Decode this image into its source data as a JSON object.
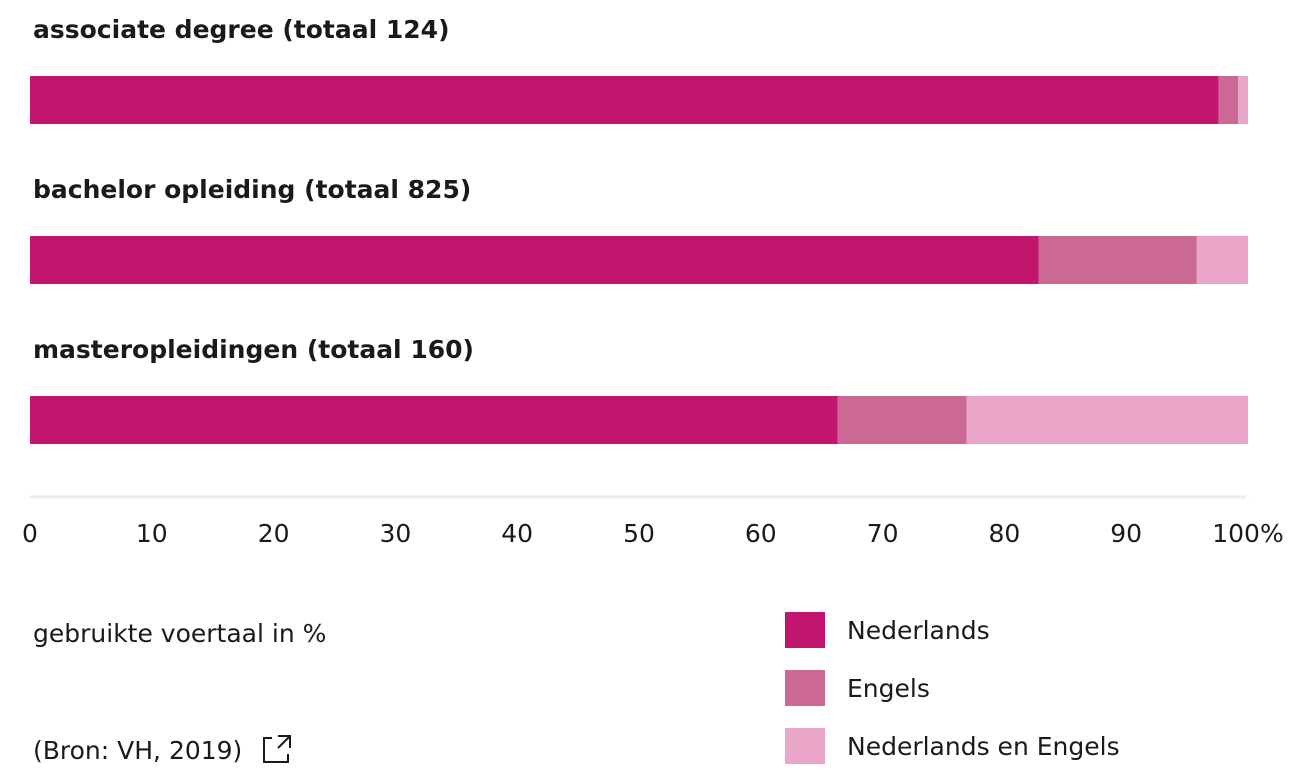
{
  "chart_data": {
    "type": "stacked_barh",
    "categories": [
      "associate degree (totaal 124)",
      "bachelor opleiding (totaal 825)",
      "masteropleidingen (totaal 160)"
    ],
    "series": [
      {
        "name": "Nederlands",
        "color": "#c2156e",
        "values": [
          97.6,
          82.8,
          66.3
        ]
      },
      {
        "name": "Engels",
        "color": "#cc6894",
        "values": [
          1.6,
          13.0,
          10.6
        ]
      },
      {
        "name": "Nederlands en Engels",
        "color": "#eaa6c9",
        "values": [
          0.8,
          4.2,
          23.1
        ]
      }
    ],
    "xlim": [
      0,
      100
    ],
    "xticks": [
      0,
      10,
      20,
      30,
      40,
      50,
      60,
      70,
      80,
      90,
      {
        "value": 100,
        "label": "100%"
      }
    ],
    "x_label": "gebruikte voertaal in %",
    "source": "(Bron: VH, 2019)"
  }
}
